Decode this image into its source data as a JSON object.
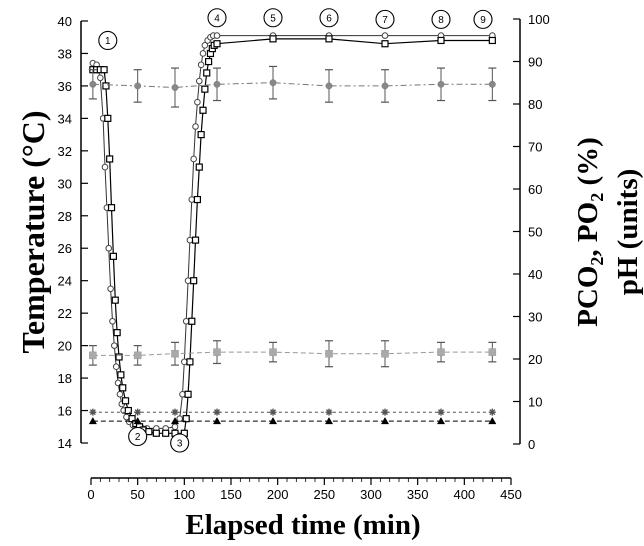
{
  "chart_data": {
    "type": "line",
    "xlabel": "Elapsed time (min)",
    "ylabel_left": "Temperature (°C)",
    "ylabel_right_main": "PCO",
    "ylabel_right_sub1": "2",
    "ylabel_right_mid": ", PO",
    "ylabel_right_sub2": "2",
    "ylabel_right_end": " (%)",
    "ylabel_right2": "pH (units)",
    "xlim": [
      0,
      450
    ],
    "ylim_left": [
      14,
      40
    ],
    "ylim_right": [
      0,
      100
    ],
    "x_ticks": [
      "0",
      "50",
      "100",
      "150",
      "200",
      "250",
      "300",
      "350",
      "400",
      "450"
    ],
    "y_left_ticks": [
      "14",
      "16",
      "18",
      "20",
      "22",
      "24",
      "26",
      "28",
      "30",
      "32",
      "34",
      "36",
      "38",
      "40"
    ],
    "y_right_ticks": [
      "0",
      "10",
      "20",
      "30",
      "40",
      "50",
      "60",
      "70",
      "80",
      "90",
      "100"
    ],
    "markers": [
      {
        "label": "1",
        "x": 18,
        "y": 38.8
      },
      {
        "label": "2",
        "x": 50,
        "y": 14.4
      },
      {
        "label": "3",
        "x": 95,
        "y": 14.0
      },
      {
        "label": "4",
        "x": 135,
        "y": 40.2
      },
      {
        "label": "5",
        "x": 195,
        "y": 40.2
      },
      {
        "label": "6",
        "x": 255,
        "y": 40.2
      },
      {
        "label": "7",
        "x": 315,
        "y": 40.1
      },
      {
        "label": "8",
        "x": 375,
        "y": 40.1
      },
      {
        "label": "9",
        "x": 420,
        "y": 40.1
      }
    ],
    "series": [
      {
        "marker": "circle-open",
        "axis": "left",
        "x": [
          2,
          6,
          10,
          13,
          15,
          17,
          19,
          21,
          23,
          25,
          27,
          29,
          31,
          33,
          35,
          38,
          41,
          45,
          50,
          55,
          60,
          70,
          80,
          90,
          95,
          98,
          100,
          102,
          104,
          106,
          108,
          110,
          112,
          114,
          116,
          118,
          120,
          122,
          125,
          128,
          131,
          135,
          195,
          255,
          315,
          375,
          430
        ],
        "y": [
          37.4,
          37.3,
          36.5,
          34.0,
          31.0,
          28.5,
          26.0,
          23.5,
          21.5,
          20.0,
          18.7,
          17.7,
          17.0,
          16.4,
          16.0,
          15.6,
          15.3,
          15.1,
          15.0,
          14.9,
          14.9,
          14.9,
          14.9,
          15.0,
          15.5,
          17.0,
          19.0,
          21.5,
          24.0,
          26.5,
          29.0,
          31.5,
          33.5,
          35.0,
          36.3,
          37.3,
          38.0,
          38.5,
          38.8,
          39.0,
          39.1,
          39.1,
          39.1,
          39.1,
          39.1,
          39.1,
          39.1
        ]
      },
      {
        "marker": "square-open",
        "axis": "left",
        "x": [
          2,
          6,
          10,
          14,
          16,
          18,
          20,
          22,
          24,
          26,
          28,
          30,
          32,
          34,
          37,
          40,
          44,
          48,
          52,
          56,
          62,
          70,
          80,
          90,
          100,
          102,
          104,
          106,
          108,
          110,
          112,
          114,
          116,
          118,
          120,
          122,
          124,
          126,
          128,
          130,
          132,
          135,
          195,
          255,
          315,
          375,
          430
        ],
        "y": [
          37.0,
          37.0,
          37.0,
          37.0,
          36.0,
          34.0,
          31.5,
          28.5,
          25.5,
          22.8,
          20.8,
          19.3,
          18.2,
          17.4,
          16.6,
          16.0,
          15.5,
          15.2,
          15.0,
          14.8,
          14.7,
          14.6,
          14.6,
          14.6,
          14.6,
          15.5,
          17.0,
          19.0,
          21.5,
          24.0,
          26.5,
          29.0,
          31.0,
          33.0,
          34.5,
          35.8,
          36.8,
          37.5,
          38.0,
          38.3,
          38.5,
          38.6,
          38.9,
          38.9,
          38.6,
          38.8,
          38.8
        ]
      },
      {
        "marker": "circle-filled-gray",
        "axis": "left",
        "x": [
          2,
          50,
          90,
          135,
          195,
          255,
          315,
          375,
          430
        ],
        "y": [
          36.1,
          36.0,
          35.9,
          36.1,
          36.2,
          36.0,
          36.0,
          36.1,
          36.1
        ],
        "err": [
          0.9,
          1.0,
          1.2,
          1.0,
          1.0,
          1.0,
          1.0,
          1.0,
          1.0
        ]
      },
      {
        "marker": "square-filled-gray",
        "axis": "left",
        "x": [
          2,
          50,
          90,
          135,
          195,
          255,
          315,
          375,
          430
        ],
        "y": [
          19.4,
          19.4,
          19.5,
          19.6,
          19.6,
          19.5,
          19.5,
          19.6,
          19.6
        ],
        "err": [
          0.6,
          0.6,
          0.7,
          0.7,
          0.6,
          0.8,
          0.8,
          0.6,
          0.6
        ]
      },
      {
        "marker": "star-gray",
        "axis": "left",
        "x": [
          2,
          50,
          90,
          135,
          195,
          255,
          315,
          375,
          430
        ],
        "y": [
          15.9,
          15.9,
          15.9,
          15.9,
          15.9,
          15.9,
          15.9,
          15.9,
          15.9
        ]
      },
      {
        "marker": "triangle-black",
        "axis": "left",
        "x": [
          2,
          50,
          90,
          135,
          195,
          255,
          315,
          375,
          430
        ],
        "y": [
          15.35,
          15.35,
          15.35,
          15.35,
          15.35,
          15.35,
          15.35,
          15.35,
          15.35
        ]
      }
    ]
  }
}
